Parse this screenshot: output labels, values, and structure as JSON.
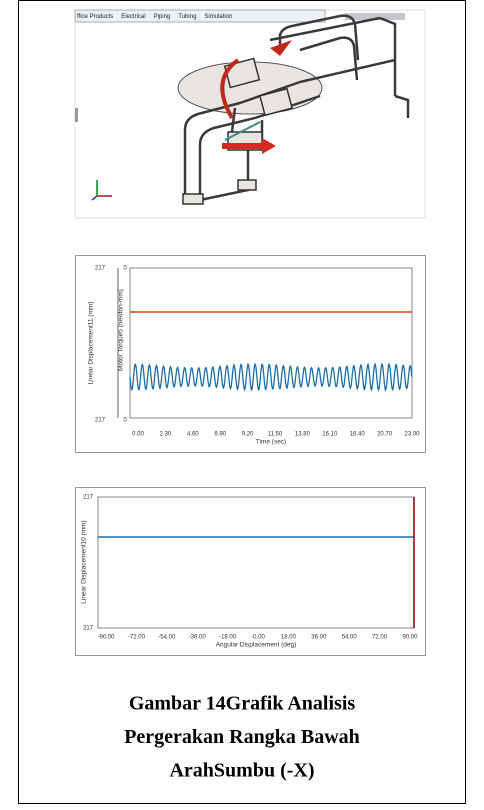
{
  "cad_view": {
    "toolbar": [
      "ffice Products",
      "Electrical",
      "Piping",
      "Tubing",
      "Simulation"
    ]
  },
  "figure_1": {
    "y_left_ticks": [
      "217",
      "217"
    ],
    "y_right_ticks": [
      "0",
      "0"
    ],
    "y_left_label": "Linear Displacement11 (mm)",
    "y_right_label": "Motor Torque5 (newton-mm)",
    "x_ticks": [
      "0.00",
      "2.30",
      "4.60",
      "6.90",
      "9.20",
      "11.50",
      "13.80",
      "16.10",
      "18.40",
      "20.70",
      "23.00"
    ],
    "x_label": "Time (sec)"
  },
  "figure_2": {
    "y_ticks": [
      "217",
      "217"
    ],
    "y_label": "Linear Displacement10 (mm)",
    "x_ticks": [
      "-90.00",
      "-72.00",
      "-54.00",
      "-36.00",
      "-18.00",
      "-0.00",
      "18.00",
      "36.00",
      "54.00",
      "72.00",
      "90.00"
    ],
    "x_label": "Angular Displacement (deg)"
  },
  "caption": {
    "lines": [
      "Gambar 14Grafik Analisis",
      "Pergerakan Rangka Bawah",
      "ArahSumbu (-X)"
    ]
  }
}
